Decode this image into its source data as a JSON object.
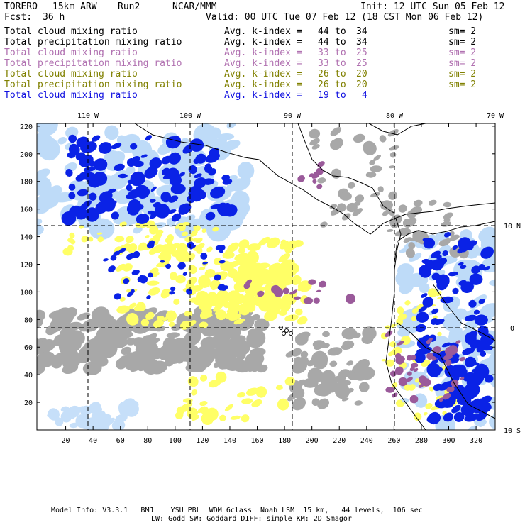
{
  "header": {
    "model": "TORERO",
    "resolution": "15km ARW",
    "run": "Run2",
    "org": "NCAR/MMM",
    "init": "Init: 12 UTC Sun 05 Feb 12",
    "fcst_label": "Fcst:",
    "fcst_value": "36 h",
    "valid": "Valid: 00 UTC Tue 07 Feb 12 (18 CST Mon 06 Feb 12)"
  },
  "legend": [
    {
      "field": "Total cloud mixing ratio",
      "avg": "Avg. k-index =",
      "k_from": "44",
      "to": "to",
      "k_to": "34",
      "sm": "sm= 2",
      "color": "#000000"
    },
    {
      "field": "Total precipitation mixing ratio",
      "avg": "Avg. k-index =",
      "k_from": "44",
      "to": "to",
      "k_to": "34",
      "sm": "sm= 2",
      "color": "#000000"
    },
    {
      "field": "Total cloud mixing ratio",
      "avg": "Avg. k-index =",
      "k_from": "33",
      "to": "to",
      "k_to": "25",
      "sm": "sm= 2",
      "color": "#b070b0"
    },
    {
      "field": "Total precipitation mixing ratio",
      "avg": "Avg. k-index =",
      "k_from": "33",
      "to": "to",
      "k_to": "25",
      "sm": "sm= 2",
      "color": "#b070b0"
    },
    {
      "field": "Total cloud mixing ratio",
      "avg": "Avg. k-index =",
      "k_from": "26",
      "to": "to",
      "k_to": "20",
      "sm": "sm= 2",
      "color": "#808000"
    },
    {
      "field": "Total precipitation mixing ratio",
      "avg": "Avg. k-index =",
      "k_from": "26",
      "to": "to",
      "k_to": "20",
      "sm": "sm= 2",
      "color": "#808000"
    },
    {
      "field": "Total cloud mixing ratio",
      "avg": "Avg. k-index =",
      "k_from": "19",
      "to": "to",
      "k_to": "4",
      "sm": "",
      "color": "#1010e0"
    }
  ],
  "map": {
    "lon_labels": [
      "110 W",
      "100 W",
      "90 W",
      "80 W",
      "70 W"
    ],
    "lat_labels": [
      "10 N",
      "0",
      "10 S"
    ],
    "x_ticks": [
      "20",
      "40",
      "60",
      "80",
      "100",
      "120",
      "140",
      "160",
      "180",
      "200",
      "220",
      "240",
      "260",
      "280",
      "300",
      "320"
    ],
    "y_ticks": [
      "20",
      "40",
      "60",
      "80",
      "100",
      "120",
      "140",
      "160",
      "180",
      "200",
      "220"
    ],
    "colors": {
      "gray": "#a8a8a8",
      "yellow": "#ffff66",
      "purple": "#9a5a9a",
      "blue": "#0a22e6",
      "lightblue": "#b8d8f8",
      "coast": "#000000"
    }
  },
  "footer": {
    "line1": "Model Info: V3.3.1   BMJ    YSU PBL  WDM 6class  Noah LSM  15 km,   44 levels,  106 sec",
    "line2": "LW: Godd SW: Goddard DIFF: simple KM: 2D Smagor"
  }
}
